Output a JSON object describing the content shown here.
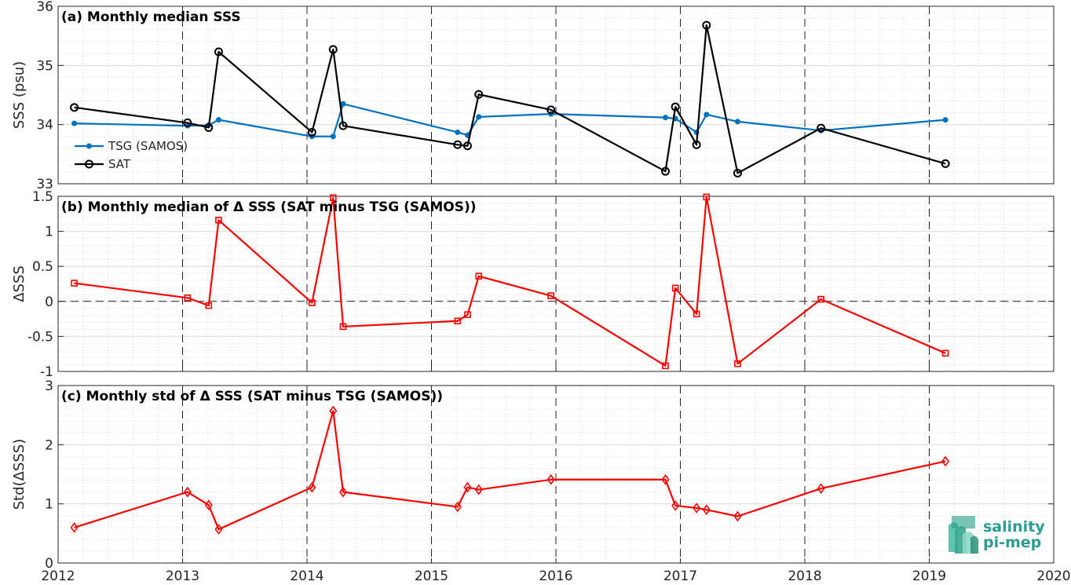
{
  "chart_data": [
    {
      "type": "line",
      "title": "(a) Monthly median SSS",
      "ylabel": "SSS (psu)",
      "ylim": [
        33,
        36
      ],
      "yticks": [
        33,
        34,
        35,
        36
      ],
      "xlim": [
        2012,
        2020
      ],
      "xticks": [
        2012,
        2013,
        2014,
        2015,
        2016,
        2017,
        2018,
        2019,
        2020
      ],
      "grid": true,
      "legend_position": "bottom-left",
      "series": [
        {
          "name": "TSG (SAMOS)",
          "color": "#0072BD",
          "marker": "dot",
          "x": [
            2012.13,
            2013.04,
            2013.21,
            2013.29,
            2014.04,
            2014.21,
            2014.29,
            2015.21,
            2015.29,
            2015.38,
            2015.96,
            2016.88,
            2016.96,
            2017.13,
            2017.21,
            2017.46,
            2018.13,
            2019.13
          ],
          "y": [
            34.02,
            33.98,
            33.99,
            34.08,
            33.8,
            33.8,
            34.35,
            33.87,
            33.82,
            34.13,
            34.18,
            34.12,
            34.1,
            33.87,
            34.17,
            34.05,
            33.9,
            34.08
          ]
        },
        {
          "name": "SAT",
          "color": "#000000",
          "marker": "circle",
          "x": [
            2012.13,
            2013.04,
            2013.21,
            2013.29,
            2014.04,
            2014.21,
            2014.29,
            2015.21,
            2015.29,
            2015.38,
            2015.96,
            2016.88,
            2016.96,
            2017.13,
            2017.21,
            2017.46,
            2018.13,
            2019.13
          ],
          "y": [
            34.29,
            34.03,
            33.95,
            35.23,
            33.87,
            35.27,
            33.98,
            33.66,
            33.64,
            34.51,
            34.25,
            33.21,
            34.3,
            33.66,
            35.68,
            33.18,
            33.94,
            33.34
          ]
        }
      ]
    },
    {
      "type": "line",
      "title": "(b) Monthly median of Δ SSS (SAT minus TSG (SAMOS))",
      "ylabel": "ΔSSS",
      "ylim": [
        -1,
        1.5
      ],
      "yticks": [
        -1,
        -0.5,
        0,
        0.5,
        1,
        1.5
      ],
      "ytick_labels": [
        "-1",
        "-0.5",
        "0",
        "0.5",
        "1",
        "1.5"
      ],
      "xlim": [
        2012,
        2020
      ],
      "xticks": [
        2012,
        2013,
        2014,
        2015,
        2016,
        2017,
        2018,
        2019,
        2020
      ],
      "grid": true,
      "zero_line": true,
      "series": [
        {
          "color": "#FF0000",
          "marker": "square",
          "x": [
            2012.13,
            2013.04,
            2013.21,
            2013.29,
            2014.04,
            2014.21,
            2014.29,
            2015.21,
            2015.29,
            2015.38,
            2015.96,
            2016.88,
            2016.96,
            2017.13,
            2017.21,
            2017.46,
            2018.13,
            2019.13
          ],
          "y": [
            0.26,
            0.05,
            -0.06,
            1.16,
            -0.02,
            1.48,
            -0.36,
            -0.28,
            -0.19,
            0.36,
            0.08,
            -0.92,
            0.19,
            -0.18,
            1.49,
            -0.89,
            0.03,
            -0.74
          ]
        }
      ]
    },
    {
      "type": "line",
      "title": "(c) Monthly std of Δ SSS (SAT minus TSG (SAMOS))",
      "ylabel": "Std(ΔSSS)",
      "ylim": [
        0,
        3
      ],
      "yticks": [
        0,
        1,
        2,
        3
      ],
      "xlim": [
        2012,
        2020
      ],
      "xticks": [
        2012,
        2013,
        2014,
        2015,
        2016,
        2017,
        2018,
        2019,
        2020
      ],
      "grid": true,
      "series": [
        {
          "color": "#FF0000",
          "marker": "diamond",
          "x": [
            2012.13,
            2013.04,
            2013.21,
            2013.29,
            2014.04,
            2014.21,
            2014.29,
            2015.21,
            2015.29,
            2015.38,
            2015.96,
            2016.88,
            2016.96,
            2017.13,
            2017.21,
            2017.46,
            2018.13,
            2019.13
          ],
          "y": [
            0.6,
            1.2,
            0.98,
            0.57,
            1.28,
            2.57,
            1.2,
            0.95,
            1.28,
            1.24,
            1.41,
            1.41,
            0.97,
            0.93,
            0.9,
            0.79,
            1.26,
            1.72
          ]
        }
      ]
    }
  ],
  "logo": {
    "line1": "salinity",
    "line2": "pi-mep"
  }
}
